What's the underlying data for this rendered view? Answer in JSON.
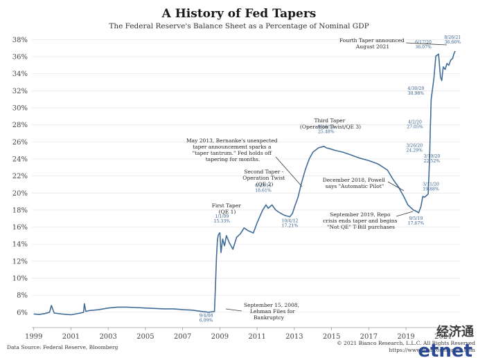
{
  "chart_data": {
    "type": "line",
    "title": "A History of Fed Tapers",
    "subtitle": "The Federal Reserve's Balance Sheet as a Percentage of Nominal GDP",
    "xlabel": "",
    "ylabel": "",
    "xlim": [
      1998.9,
      2021.9
    ],
    "ylim": [
      4.2,
      38.6
    ],
    "x_ticks": [
      1999,
      2001,
      2003,
      2005,
      2007,
      2009,
      2011,
      2013,
      2015,
      2017,
      2019,
      2021
    ],
    "x_tick_labels": [
      "1999",
      "2001",
      "2003",
      "2005",
      "2007",
      "2009",
      "2011",
      "2013",
      "2015",
      "2017",
      "2019",
      "2021"
    ],
    "y_ticks": [
      6,
      8,
      10,
      12,
      14,
      16,
      18,
      20,
      22,
      24,
      26,
      28,
      30,
      32,
      34,
      36,
      38
    ],
    "y_tick_labels": [
      "6%",
      "8%",
      "10%",
      "12%",
      "14%",
      "16%",
      "18%",
      "20%",
      "22%",
      "24%",
      "26%",
      "28%",
      "30%",
      "32%",
      "34%",
      "36%",
      "38%"
    ],
    "grid": true,
    "legend": "none",
    "series": [
      {
        "color": "#3e6b97",
        "x": [
          1999.0,
          1999.3,
          1999.6,
          1999.85,
          1999.95,
          2000.1,
          2000.5,
          2001.0,
          2001.5,
          2001.68,
          2001.72,
          2001.8,
          2002.0,
          2002.5,
          2003.0,
          2003.5,
          2004.0,
          2004.5,
          2005.0,
          2005.5,
          2006.0,
          2006.5,
          2007.0,
          2007.5,
          2008.0,
          2008.4,
          2008.55,
          2008.71,
          2008.77,
          2008.82,
          2008.87,
          2008.92,
          2009.0,
          2009.06,
          2009.15,
          2009.25,
          2009.35,
          2009.5,
          2009.7,
          2009.9,
          2010.1,
          2010.3,
          2010.5,
          2010.8,
          2011.0,
          2011.3,
          2011.48,
          2011.6,
          2011.8,
          2012.0,
          2012.2,
          2012.45,
          2012.6,
          2012.76,
          2012.9,
          2013.0,
          2013.2,
          2013.4,
          2013.6,
          2013.8,
          2014.0,
          2014.3,
          2014.6,
          2014.71,
          2014.9,
          2015.2,
          2015.6,
          2016.0,
          2016.5,
          2017.0,
          2017.5,
          2018.0,
          2018.3,
          2018.6,
          2018.9,
          2019.1,
          2019.4,
          2019.6,
          2019.68,
          2019.8,
          2019.9,
          2020.0,
          2020.1,
          2020.19,
          2020.24,
          2020.27,
          2020.3,
          2020.35,
          2020.5,
          2020.6,
          2020.75,
          2020.85,
          2020.92,
          2020.96,
          2021.0,
          2021.1,
          2021.2,
          2021.3,
          2021.4,
          2021.5,
          2021.6,
          2021.65
        ],
        "y": [
          5.8,
          5.75,
          5.85,
          6.0,
          6.8,
          5.9,
          5.8,
          5.7,
          5.9,
          6.0,
          7.0,
          6.1,
          6.2,
          6.3,
          6.5,
          6.6,
          6.6,
          6.55,
          6.5,
          6.45,
          6.4,
          6.4,
          6.3,
          6.25,
          6.1,
          6.0,
          6.05,
          6.09,
          9.5,
          12.5,
          14.5,
          15.1,
          15.33,
          13.0,
          14.6,
          13.8,
          15.0,
          14.2,
          13.4,
          14.8,
          15.2,
          15.9,
          15.6,
          15.3,
          16.5,
          18.0,
          18.61,
          18.2,
          18.6,
          18.0,
          17.7,
          17.4,
          17.3,
          17.21,
          17.6,
          18.3,
          19.5,
          21.3,
          22.8,
          24.0,
          24.8,
          25.3,
          25.48,
          25.3,
          25.2,
          25.0,
          24.8,
          24.5,
          24.1,
          23.8,
          23.4,
          22.7,
          21.6,
          20.7,
          19.5,
          18.6,
          18.0,
          17.8,
          17.67,
          18.4,
          19.6,
          19.5,
          19.7,
          19.88,
          22.52,
          24.29,
          27.05,
          30.98,
          33.5,
          36.07,
          36.3,
          33.6,
          33.2,
          34.0,
          34.8,
          34.5,
          35.2,
          35.0,
          35.6,
          35.8,
          36.5,
          36.66
        ]
      }
    ],
    "data_labels": [
      {
        "x": 2008.71,
        "y": 6.09,
        "lines": [
          "9/4/08",
          "6.09%"
        ]
      },
      {
        "x": 2009.0,
        "y": 15.33,
        "lines": [
          "1/1/09",
          "15.33%"
        ]
      },
      {
        "x": 2011.48,
        "y": 18.61,
        "lines": [
          "6/23/11",
          "18.61%"
        ]
      },
      {
        "x": 2012.76,
        "y": 17.21,
        "lines": [
          "10/4/12",
          "17.21%"
        ]
      },
      {
        "x": 2014.71,
        "y": 25.48,
        "lines": [
          "9/18/14",
          "25.48%"
        ]
      },
      {
        "x": 2019.68,
        "y": 17.67,
        "lines": [
          "9/5/19",
          "17.67%"
        ]
      },
      {
        "x": 2020.19,
        "y": 19.88,
        "lines": [
          "3/11/20",
          "19.88%"
        ]
      },
      {
        "x": 2020.24,
        "y": 22.52,
        "lines": [
          "3/19/20",
          "22.52%"
        ]
      },
      {
        "x": 2020.27,
        "y": 24.29,
        "lines": [
          "3/26/20",
          "24.29%"
        ]
      },
      {
        "x": 2020.3,
        "y": 27.05,
        "lines": [
          "4/2/20",
          "27.05%"
        ]
      },
      {
        "x": 2020.35,
        "y": 30.98,
        "lines": [
          "4/30/20",
          "30.98%"
        ]
      },
      {
        "x": 2020.6,
        "y": 36.07,
        "lines": [
          "6/17/20",
          "36.07%"
        ]
      },
      {
        "x": 2021.65,
        "y": 36.66,
        "lines": [
          "8/26/21",
          "36.66%"
        ]
      }
    ],
    "annotations": [
      {
        "lines": [
          "September 15, 2008,",
          "Lehman Files for",
          "Bankruptcy"
        ]
      },
      {
        "lines": [
          "First Taper",
          "(QE 1)"
        ]
      },
      {
        "lines": [
          "Second Taper -",
          "Operation Twist",
          "(QE 2)"
        ]
      },
      {
        "lines": [
          "May 2013, Bernanke's unexpected",
          "taper announcement sparks a",
          "\"taper tantrum.\" Fed holds off",
          "tapering for months."
        ]
      },
      {
        "lines": [
          "Third Taper",
          "(Operation Twist/QE 3)"
        ]
      },
      {
        "lines": [
          "December 2018, Powell",
          "says \"Automatic Pilot\""
        ]
      },
      {
        "lines": [
          "September 2019, Repo",
          "crisis ends taper and begins",
          "\"Not QE\" T-Bill purchases"
        ]
      },
      {
        "lines": [
          "Fourth Taper announced",
          "August 2021"
        ]
      }
    ]
  },
  "footer": {
    "source": "Data Source: Federal Reserve, Bloomberg",
    "copyright": "© 2021 Bianco Research, L.L.C. All Rights Reserved",
    "url": "https://www.biancoresearch.com"
  },
  "watermark": {
    "top": "经济通",
    "bottom": "etnet"
  }
}
